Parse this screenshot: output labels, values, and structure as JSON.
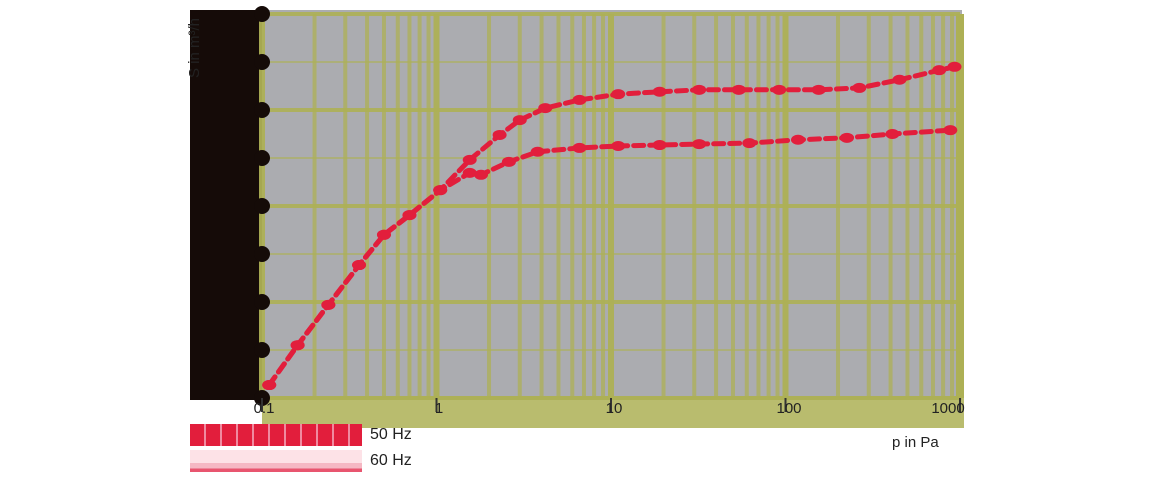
{
  "chart_data": {
    "type": "line",
    "title": "",
    "xlabel": "p in Pa",
    "ylabel": "S in m³/h",
    "xscale": "log",
    "xlim": [
      0.1,
      1000
    ],
    "ylim": [
      0,
      8
    ],
    "x_ticks": [
      "0.1",
      "1",
      "10",
      "100",
      "1000"
    ],
    "y_ticks": [],
    "grid": true,
    "legend_position": "bottom-left",
    "colors": {
      "plot_bg": "#abacb0",
      "grid_band": "#adb055",
      "axis_block": "#150b08",
      "series_50hz": "#e21e3c",
      "series_60hz": "#f5b8c4"
    },
    "series": [
      {
        "name": "50 Hz",
        "color": "#e21e3c",
        "x": [
          0.11,
          0.16,
          0.24,
          0.36,
          0.5,
          0.7,
          1.05,
          1.55,
          2.3,
          3.0,
          4.2,
          6.6,
          11,
          19,
          32,
          54,
          92,
          155,
          265,
          450,
          760,
          930
        ],
        "y": [
          0.27,
          1.1,
          1.94,
          2.77,
          3.4,
          3.81,
          4.33,
          4.96,
          5.48,
          5.79,
          6.04,
          6.21,
          6.33,
          6.38,
          6.42,
          6.42,
          6.42,
          6.42,
          6.46,
          6.63,
          6.83,
          6.9
        ]
      },
      {
        "name": "60 Hz",
        "color": "#f5b8c4",
        "x": [
          0.11,
          0.16,
          0.24,
          0.36,
          0.5,
          0.7,
          1.05,
          1.55,
          1.8,
          2.6,
          3.8,
          6.6,
          11,
          19,
          32,
          62,
          118,
          225,
          410,
          880
        ],
        "y": [
          0.27,
          1.1,
          1.94,
          2.77,
          3.4,
          3.81,
          4.33,
          4.69,
          4.65,
          4.92,
          5.13,
          5.21,
          5.25,
          5.27,
          5.29,
          5.31,
          5.38,
          5.42,
          5.5,
          5.58
        ]
      }
    ]
  },
  "legend": {
    "items": [
      {
        "label": "50 Hz"
      },
      {
        "label": "60 Hz"
      }
    ]
  },
  "axes": {
    "xlabel": "p in Pa",
    "ylabel": "S in m³/h",
    "x_ticks": [
      "0.1",
      "1",
      "10",
      "100",
      "1000"
    ]
  }
}
